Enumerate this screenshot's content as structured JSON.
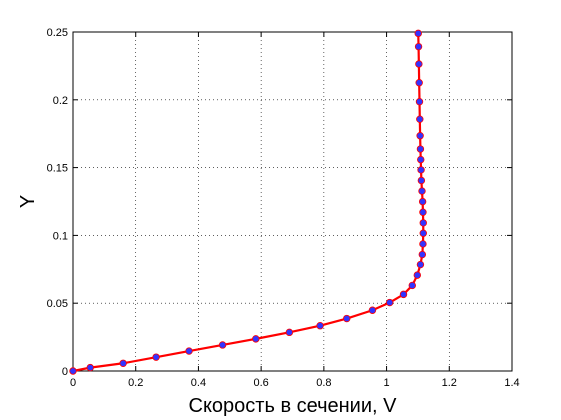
{
  "chart_data": {
    "type": "line",
    "title": "",
    "xlabel": "Скорость в сечении, V",
    "ylabel": "Y",
    "xlim": [
      0,
      1.4
    ],
    "ylim": [
      0,
      0.25
    ],
    "grid": true,
    "x_ticks": [
      "0",
      "0.2",
      "0.4",
      "0.6",
      "0.8",
      "1",
      "1.2",
      "1.4"
    ],
    "y_ticks": [
      "0",
      "0.05",
      "0.1",
      "0.15",
      "0.2",
      "0.25"
    ],
    "line_color": "#ff0000",
    "marker_color": "#3333ff",
    "series": [
      {
        "x": [
          0,
          0.055,
          0.16,
          0.265,
          0.37,
          0.477,
          0.583,
          0.69,
          0.788,
          0.873,
          0.955,
          1.01,
          1.054,
          1.082,
          1.098,
          1.108,
          1.114,
          1.116,
          1.117,
          1.117,
          1.116,
          1.115,
          1.113,
          1.111,
          1.11,
          1.109,
          1.108,
          1.107,
          1.106,
          1.105,
          1.104,
          1.103,
          1.102,
          1.101
        ],
        "y": [
          0.0,
          0.0025,
          0.0057,
          0.0102,
          0.0147,
          0.0192,
          0.0237,
          0.0285,
          0.0334,
          0.0387,
          0.0448,
          0.0505,
          0.0565,
          0.0631,
          0.0707,
          0.0785,
          0.0859,
          0.0937,
          0.1016,
          0.1092,
          0.1171,
          0.1249,
          0.1327,
          0.1405,
          0.1483,
          0.1559,
          0.1637,
          0.1735,
          0.1857,
          0.1986,
          0.2126,
          0.2264,
          0.2392,
          0.249
        ]
      }
    ]
  }
}
